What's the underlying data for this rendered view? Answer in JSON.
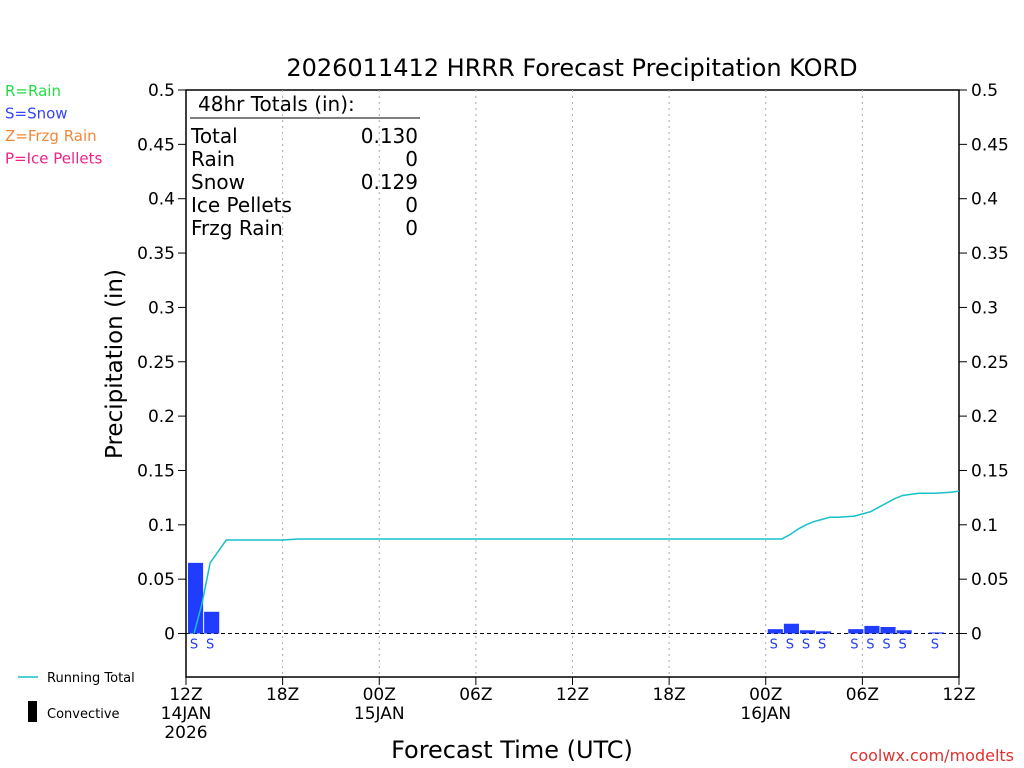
{
  "chart_data": {
    "type": "bar",
    "title": "2026011412 HRRR Forecast Precipitation KORD",
    "ylabel": "Precipitation (in)",
    "xlabel": "Forecast Time (UTC)",
    "ylim": [
      -0.04,
      0.5
    ],
    "yticks": [
      0,
      0.05,
      0.1,
      0.15,
      0.2,
      0.25,
      0.3,
      0.35,
      0.4,
      0.45,
      0.5
    ],
    "ytick_labels": [
      "0",
      "0.05",
      "0.1",
      "0.15",
      "0.2",
      "0.25",
      "0.3",
      "0.35",
      "0.4",
      "0.45",
      "0.5"
    ],
    "xlim_hours": [
      0,
      48
    ],
    "xticks": [
      {
        "hour": 0,
        "label": "12Z",
        "sub": [
          "14JAN",
          "2026"
        ]
      },
      {
        "hour": 6,
        "label": "18Z",
        "sub": []
      },
      {
        "hour": 12,
        "label": "00Z",
        "sub": [
          "15JAN"
        ]
      },
      {
        "hour": 18,
        "label": "06Z",
        "sub": []
      },
      {
        "hour": 24,
        "label": "12Z",
        "sub": []
      },
      {
        "hour": 30,
        "label": "18Z",
        "sub": []
      },
      {
        "hour": 36,
        "label": "00Z",
        "sub": [
          "16JAN"
        ]
      },
      {
        "hour": 42,
        "label": "06Z",
        "sub": []
      },
      {
        "hour": 48,
        "label": "12Z",
        "sub": []
      }
    ],
    "gridlines_hours": [
      6,
      12,
      18,
      24,
      30,
      36,
      42
    ],
    "series": [
      {
        "name": "Snow",
        "color": "#1f3cff",
        "bars": [
          {
            "hour": 1,
            "value": 0.065,
            "ptype": "S"
          },
          {
            "hour": 2,
            "value": 0.02,
            "ptype": "S"
          },
          {
            "hour": 37,
            "value": 0.004,
            "ptype": "S"
          },
          {
            "hour": 38,
            "value": 0.009,
            "ptype": "S"
          },
          {
            "hour": 39,
            "value": 0.003,
            "ptype": "S"
          },
          {
            "hour": 40,
            "value": 0.002,
            "ptype": "S"
          },
          {
            "hour": 42,
            "value": 0.004,
            "ptype": "S"
          },
          {
            "hour": 43,
            "value": 0.007,
            "ptype": "S"
          },
          {
            "hour": 44,
            "value": 0.006,
            "ptype": "S"
          },
          {
            "hour": 45,
            "value": 0.003,
            "ptype": "S"
          },
          {
            "hour": 47,
            "value": 0.001,
            "ptype": "S"
          }
        ]
      },
      {
        "name": "Running Total",
        "color": "#17c1c8",
        "points": [
          [
            0.5,
            0
          ],
          [
            1,
            0.028
          ],
          [
            1.5,
            0.065
          ],
          [
            2.5,
            0.086
          ],
          [
            6,
            0.086
          ],
          [
            7,
            0.087
          ],
          [
            36.5,
            0.087
          ],
          [
            37,
            0.087
          ],
          [
            37.5,
            0.091
          ],
          [
            38,
            0.096
          ],
          [
            38.5,
            0.1
          ],
          [
            39,
            0.103
          ],
          [
            39.5,
            0.105
          ],
          [
            40,
            0.107
          ],
          [
            40.5,
            0.107
          ],
          [
            41.5,
            0.108
          ],
          [
            42.5,
            0.112
          ],
          [
            43,
            0.116
          ],
          [
            43.5,
            0.12
          ],
          [
            44,
            0.124
          ],
          [
            44.5,
            0.127
          ],
          [
            45.5,
            0.129
          ],
          [
            46.5,
            0.129
          ],
          [
            47.5,
            0.13
          ],
          [
            48,
            0.131
          ]
        ]
      }
    ],
    "totals_box": {
      "header": "48hr Totals (in):",
      "rows": [
        {
          "label": "Total",
          "value": "0.130"
        },
        {
          "label": "Rain",
          "value": "0"
        },
        {
          "label": "Snow",
          "value": "0.129"
        },
        {
          "label": "Ice Pellets",
          "value": "0"
        },
        {
          "label": "Frzg Rain",
          "value": "0"
        }
      ]
    },
    "ptype_legend": [
      {
        "text": "R=Rain",
        "color": "#22dd44"
      },
      {
        "text": "S=Snow",
        "color": "#3344ff"
      },
      {
        "text": "Z=Frzg Rain",
        "color": "#f0883a"
      },
      {
        "text": "P=Ice Pellets",
        "color": "#ee2288"
      }
    ],
    "bottom_legend": [
      {
        "text": "Running Total",
        "color": "#17c1c8",
        "kind": "line"
      },
      {
        "text": "Convective",
        "color": "#000000",
        "kind": "bar"
      }
    ],
    "credit": "coolwx.com/modelts",
    "credit_color": "#e03030",
    "colors": {
      "axis": "#000000",
      "grid": "#aaaaaa",
      "zero_line": "#000000"
    }
  }
}
